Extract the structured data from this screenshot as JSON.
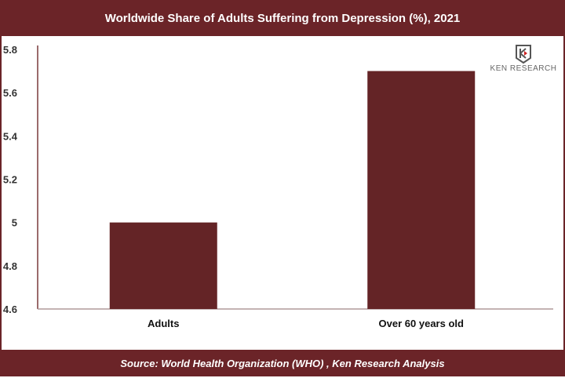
{
  "chart_data": {
    "type": "bar",
    "title": "Worldwide Share of Adults Suffering from Depression (%), 2021",
    "categories": [
      "Adults",
      "Over 60 years old"
    ],
    "values": [
      5.0,
      5.7
    ],
    "ylim": [
      4.6,
      5.8
    ],
    "yticks": [
      "4.6",
      "4.8",
      "5",
      "5.2",
      "5.4",
      "5.6",
      "5.8"
    ],
    "xlabel": "",
    "ylabel": "",
    "grid": false,
    "bar_color": "#642426"
  },
  "source": "Source: World Health Organization (WHO) , Ken Research Analysis",
  "logo": {
    "text": "KEN RESEARCH"
  },
  "colors": {
    "accent": "#6b2428"
  }
}
